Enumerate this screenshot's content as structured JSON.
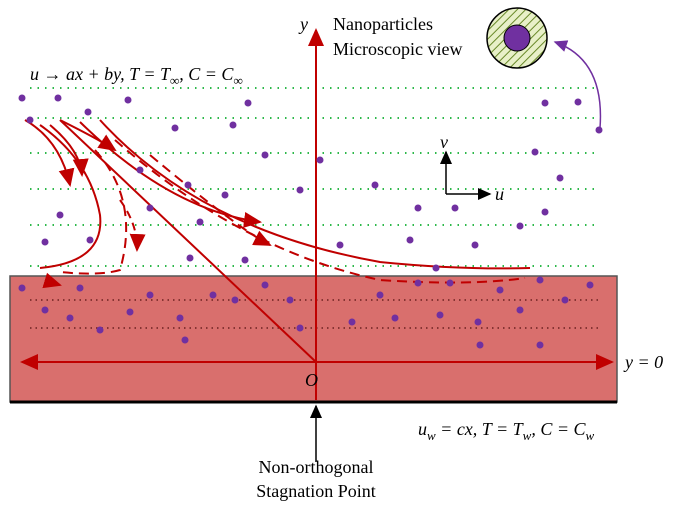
{
  "axis_label_y": "y",
  "inset": {
    "title": "Nanoparticles",
    "subtitle": "Microscopic view"
  },
  "far_field_condition": [
    "u → ax + by, T = T",
    "∞",
    ", C = C",
    "∞"
  ],
  "velocity_axes": {
    "v": "v",
    "u": "u"
  },
  "wall_line_label": "y = 0",
  "origin_label": "O",
  "wall_condition": [
    "u",
    "w",
    " = cx, T = T",
    "w",
    ", C = C",
    "w"
  ],
  "stagnation_label": [
    "Non-orthogonal",
    "Stagnation Point"
  ]
}
